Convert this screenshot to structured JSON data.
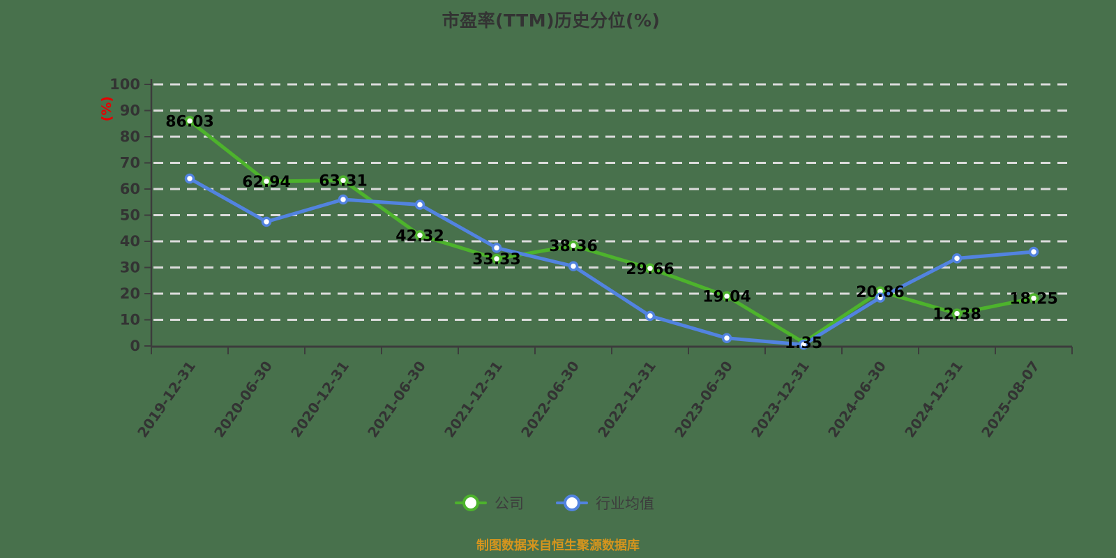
{
  "title": "市盈率(TTM)历史分位(%)",
  "y_axis_name": "(%)",
  "footer": "制图数据来自恒生聚源数据库",
  "legend": [
    {
      "label": "公司",
      "color": "#4DB32C"
    },
    {
      "label": "行业均值",
      "color": "#5283E0"
    }
  ],
  "colors": {
    "background": "#48714C",
    "series_company": "#4DB32C",
    "series_industry": "#5283E0",
    "gridline": "#DCDCDC",
    "axis": "#3C3C3C",
    "tick_label": "#333333",
    "data_label": "#000000",
    "y_axis_name": "#E60000",
    "title": "#333333",
    "footer": "#D6951D",
    "point_fill": "#FFFFFF"
  },
  "chart_data": {
    "type": "line",
    "title": "市盈率(TTM)历史分位(%)",
    "ylabel": "(%)",
    "xlabel": "",
    "ylim": [
      0,
      100
    ],
    "yticks": [
      0,
      10,
      20,
      30,
      40,
      50,
      60,
      70,
      80,
      90,
      100
    ],
    "grid": "horizontal-dashed",
    "legend_position": "bottom",
    "categories": [
      "2019-12-31",
      "2020-06-30",
      "2020-12-31",
      "2021-06-30",
      "2021-12-31",
      "2022-06-30",
      "2022-12-31",
      "2023-06-30",
      "2023-12-31",
      "2024-06-30",
      "2024-12-31",
      "2025-08-07"
    ],
    "series": [
      {
        "name": "公司",
        "color": "#4DB32C",
        "show_labels": true,
        "values": [
          86.03,
          62.94,
          63.31,
          42.32,
          33.33,
          38.36,
          29.66,
          19.04,
          1.35,
          20.86,
          12.38,
          18.25
        ]
      },
      {
        "name": "行业均值",
        "color": "#5283E0",
        "show_labels": false,
        "values": [
          64,
          47.5,
          56,
          54,
          37.5,
          30.5,
          11.5,
          3,
          0.5,
          18.5,
          33.5,
          36
        ]
      }
    ]
  }
}
